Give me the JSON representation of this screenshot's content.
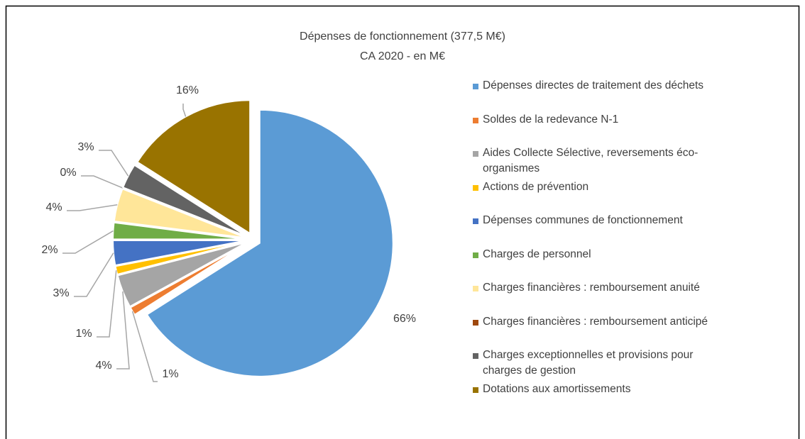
{
  "chart_data": {
    "type": "pie",
    "title": "Dépenses de fonctionnement (377,5 M€)",
    "subtitle": "CA 2020 - en M€",
    "categories": [
      "Dépenses directes de traitement des déchets",
      "Soldes de la redevance N-1",
      "Aides Collecte Sélective, reversements éco-organismes",
      "Actions de prévention",
      "Dépenses communes de fonctionnement",
      "Charges de personnel",
      "Charges financières : remboursement anuité",
      "Charges financières : remboursement anticipé",
      "Charges exceptionnelles et provisions pour charges de gestion",
      "Dotations aux amortissements"
    ],
    "values": [
      66,
      1,
      4,
      1,
      3,
      2,
      4,
      0,
      3,
      16
    ],
    "value_labels": [
      "66%",
      "1%",
      "4%",
      "1%",
      "3%",
      "2%",
      "4%",
      "0%",
      "3%",
      "16%"
    ],
    "colors": [
      "#5b9bd5",
      "#ed7d31",
      "#a5a5a5",
      "#ffc000",
      "#4472c4",
      "#70ad47",
      "#ffe699",
      "#9e480e",
      "#636363",
      "#997300"
    ],
    "legend": "right"
  }
}
